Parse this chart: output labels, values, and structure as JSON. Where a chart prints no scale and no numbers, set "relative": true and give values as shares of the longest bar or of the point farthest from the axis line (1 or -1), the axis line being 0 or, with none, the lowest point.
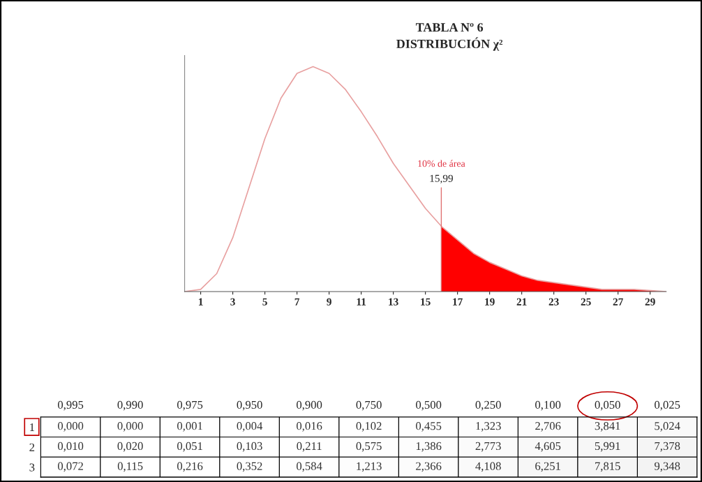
{
  "chart_data": [
    {
      "type": "line",
      "title": "TABLA Nº 6",
      "subtitle": "DISTRIBUCIÓN χ²",
      "relative": true,
      "xlim": [
        0,
        30
      ],
      "xticks": [
        1,
        3,
        5,
        7,
        9,
        11,
        13,
        15,
        17,
        19,
        21,
        23,
        25,
        27,
        29
      ],
      "x": [
        0,
        1,
        2,
        3,
        4,
        5,
        6,
        7,
        8,
        9,
        10,
        11,
        12,
        13,
        14,
        15,
        16,
        17,
        18,
        19,
        20,
        21,
        22,
        24,
        26,
        28,
        30
      ],
      "series": [
        {
          "color": "#e8a0a0",
          "values": [
            0,
            0.01,
            0.08,
            0.24,
            0.46,
            0.68,
            0.86,
            0.97,
            1,
            0.97,
            0.9,
            0.8,
            0.69,
            0.57,
            0.47,
            0.37,
            0.29,
            0.23,
            0.17,
            0.13,
            0.1,
            0.07,
            0.05,
            0.03,
            0.01,
            0.01,
            0
          ]
        },
        {
          "type": "area",
          "color": "#ff0000",
          "x": [
            15.99,
            17,
            18,
            19,
            20,
            21,
            22,
            24,
            26,
            28,
            30
          ],
          "values": [
            0.29,
            0.23,
            0.17,
            0.13,
            0.1,
            0.07,
            0.05,
            0.03,
            0.01,
            0.01,
            0
          ]
        }
      ],
      "ref_lines": [
        {
          "axis": "x",
          "value": 15.99,
          "label": "15,99",
          "color": "#e07070"
        }
      ],
      "annotations": [
        "10% de área"
      ]
    },
    {
      "type": "heatmap",
      "categories": [
        "0,995",
        "0,990",
        "0,975",
        "0,950",
        "0,900",
        "0,750",
        "0,500",
        "0,250",
        "0,100",
        "0,050",
        "0,025"
      ],
      "y_categories": [
        "1",
        "2",
        "3"
      ],
      "cells": [
        [
          0.0,
          0.0,
          0.001,
          0.004,
          0.016,
          0.102,
          0.455,
          1.323,
          2.706,
          3.841,
          5.024
        ],
        [
          0.01,
          0.02,
          0.051,
          0.103,
          0.211,
          0.575,
          1.386,
          2.773,
          4.605,
          5.991,
          7.378
        ],
        [
          0.072,
          0.115,
          0.216,
          0.352,
          0.584,
          1.213,
          2.366,
          4.108,
          6.251,
          7.815,
          9.348
        ]
      ],
      "cell_labels": [
        [
          "0,000",
          "0,000",
          "0,001",
          "0,004",
          "0,016",
          "0,102",
          "0,455",
          "1,323",
          "2,706",
          "3,841",
          "5,024"
        ],
        [
          "0,010",
          "0,020",
          "0,051",
          "0,103",
          "0,211",
          "0,575",
          "1,386",
          "2,773",
          "4,605",
          "5,991",
          "7,378"
        ],
        [
          "0,072",
          "0,115",
          "0,216",
          "0,352",
          "0,584",
          "1,213",
          "2,366",
          "4,108",
          "6,251",
          "7,815",
          "9,348"
        ]
      ]
    }
  ]
}
